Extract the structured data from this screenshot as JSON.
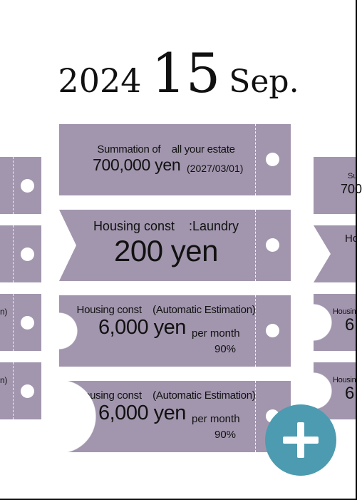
{
  "date": {
    "year": "2024",
    "day": "15",
    "month": "Sep."
  },
  "cards": [
    {
      "title": "Summation of    all your estate",
      "amount": "700,000 yen",
      "date": "(2027/03/01)"
    },
    {
      "title": "Housing const    :Laundry",
      "amount": "200 yen"
    },
    {
      "title": "Housing const    (Automatic Estimation)",
      "amount": "6,000 yen",
      "period": "per month",
      "percent": "90%"
    },
    {
      "title": "Housing const    (Automatic Estimation)",
      "amount": "6,000 yen",
      "period": "per month",
      "percent": "90%"
    }
  ],
  "left_peek": [
    {
      "title_fragment": "n)"
    },
    {
      "title_fragment": "n)"
    }
  ],
  "right_peek": [
    {
      "title_fragment": "Su",
      "amount_fragment": "700"
    },
    {
      "title_fragment": "Ho"
    },
    {
      "title_fragment": "Housin",
      "amount_fragment": "6,"
    },
    {
      "title_fragment": "Housin",
      "amount_fragment": "6,"
    }
  ],
  "fab": {
    "icon": "plus-icon"
  },
  "colors": {
    "ticket": "#a296ae",
    "fab": "#4c9bb1",
    "background": "#ffffff"
  }
}
